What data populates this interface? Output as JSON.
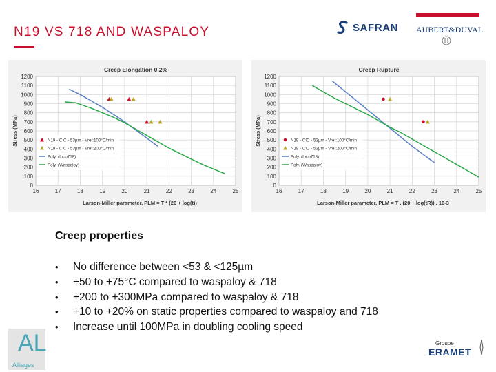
{
  "slide": {
    "title": "N19 VS 718 AND WASPALOY",
    "heading": "Creep properties",
    "bullets": [
      "No difference between <53 & <125µm",
      "+50 to +75°C compared to waspaloy & 718",
      "+200 to +300MPa compared to waspaloy & 718",
      "+10 to +20% on static properties compared to waspaloy and 718",
      "Increase until 100MPa in doubling cooling speed"
    ],
    "bullet_glyph": "•"
  },
  "logos": {
    "safran": "SAFRAN",
    "aubert_duval": "AUBERT&DUVAL",
    "all": "AL",
    "all_sub": "Alliages",
    "eramet_groupe": "Groupe",
    "eramet": "ERAMET"
  },
  "colors": {
    "accent_red": "#c8102e",
    "series_718": "#5a7fc4",
    "series_waspaloy": "#2aa84a",
    "marker_red": "#c8102e",
    "marker_olive": "#b5a32a"
  },
  "chart_data": [
    {
      "type": "line",
      "title": "Creep Elongation 0,2%",
      "xlabel": "Larson-Miller parameter, PLM = T * (20 + log(t))",
      "ylabel": "Stress (MPa)",
      "xlim": [
        16,
        25
      ],
      "ylim": [
        0,
        1200
      ],
      "xticks": [
        16,
        17,
        18,
        19,
        20,
        21,
        22,
        23,
        24,
        25
      ],
      "yticks": [
        0,
        100,
        200,
        300,
        400,
        500,
        600,
        700,
        800,
        900,
        1000,
        1100,
        1200
      ],
      "grid": true,
      "legend_position": "bottom-left",
      "legend": [
        "N19 - CIC - 53µm - Vref:100°C/min",
        "N19 - CIC - 53µm - Vref:200°C/min",
        "Poly. (Inco718)",
        "Poly. (Waspaloy)"
      ],
      "series": [
        {
          "name": "N19 - CIC - 53µm - Vref:100°C/min",
          "kind": "marker",
          "marker": "triangle",
          "color": "#c8102e",
          "x": [
            19.3,
            20.2,
            21.0
          ],
          "y": [
            950,
            950,
            700
          ]
        },
        {
          "name": "N19 - CIC - 53µm - Vref:200°C/min",
          "kind": "marker",
          "marker": "triangle",
          "color": "#b5a32a",
          "x": [
            19.4,
            20.4,
            21.2,
            21.6
          ],
          "y": [
            950,
            950,
            700,
            700
          ]
        },
        {
          "name": "Poly. (Inco718)",
          "kind": "line",
          "color": "#5a7fc4",
          "x": [
            17.5,
            18.0,
            18.5,
            19.0,
            19.5,
            20.0,
            20.5,
            21.0,
            21.5
          ],
          "y": [
            1060,
            1000,
            930,
            860,
            780,
            700,
            610,
            520,
            430
          ]
        },
        {
          "name": "Poly. (Waspaloy)",
          "kind": "line",
          "color": "#2aa84a",
          "x": [
            17.3,
            17.8,
            18.5,
            19.0,
            19.5,
            20.0,
            20.5,
            21.0,
            21.5,
            22.0,
            22.5,
            23.0,
            23.5,
            24.0,
            24.5
          ],
          "y": [
            920,
            910,
            850,
            800,
            750,
            690,
            620,
            550,
            480,
            410,
            350,
            290,
            230,
            180,
            130
          ]
        }
      ]
    },
    {
      "type": "line",
      "title": "Creep Rupture",
      "xlabel": "Larson-Miller parameter, PLM = T . (20 + log(tR)) . 10-3",
      "ylabel": "Stress (MPa)",
      "xlim": [
        16,
        25
      ],
      "ylim": [
        0,
        1200
      ],
      "xticks": [
        16,
        17,
        18,
        19,
        20,
        21,
        22,
        23,
        24,
        25
      ],
      "yticks": [
        0,
        100,
        200,
        300,
        400,
        500,
        600,
        700,
        800,
        900,
        1000,
        1100,
        1200
      ],
      "grid": true,
      "legend_position": "bottom-left",
      "legend": [
        "N19 - CIC - 53µm - Vref:100°C/min",
        "N19 - CIC - 53µm - Vref:200°C/min",
        "Poly. (Inco718)",
        "Poly. (Waspaloy)"
      ],
      "series": [
        {
          "name": "N19 - CIC - 53µm - Vref:100°C/min",
          "kind": "marker",
          "marker": "circle",
          "color": "#c8102e",
          "x": [
            20.7,
            22.5
          ],
          "y": [
            950,
            700
          ]
        },
        {
          "name": "N19 - CIC - 53µm - Vref:200°C/min",
          "kind": "marker",
          "marker": "triangle",
          "color": "#b5a32a",
          "x": [
            21.0,
            22.7
          ],
          "y": [
            950,
            700
          ]
        },
        {
          "name": "Poly. (Inco718)",
          "kind": "line",
          "color": "#5a7fc4",
          "x": [
            18.4,
            19.0,
            19.5,
            20.0,
            20.5,
            21.0,
            21.5,
            22.0,
            22.5,
            23.0
          ],
          "y": [
            1150,
            1030,
            930,
            830,
            730,
            630,
            530,
            430,
            340,
            250
          ]
        },
        {
          "name": "Poly. (Waspaloy)",
          "kind": "line",
          "color": "#2aa84a",
          "x": [
            17.5,
            18.0,
            18.5,
            19.0,
            19.5,
            20.0,
            20.5,
            21.0,
            21.5,
            22.0,
            22.5,
            23.0,
            23.5,
            24.0,
            24.5,
            25.0
          ],
          "y": [
            1100,
            1030,
            960,
            900,
            840,
            780,
            710,
            640,
            580,
            510,
            440,
            370,
            300,
            230,
            160,
            90
          ]
        }
      ]
    }
  ]
}
